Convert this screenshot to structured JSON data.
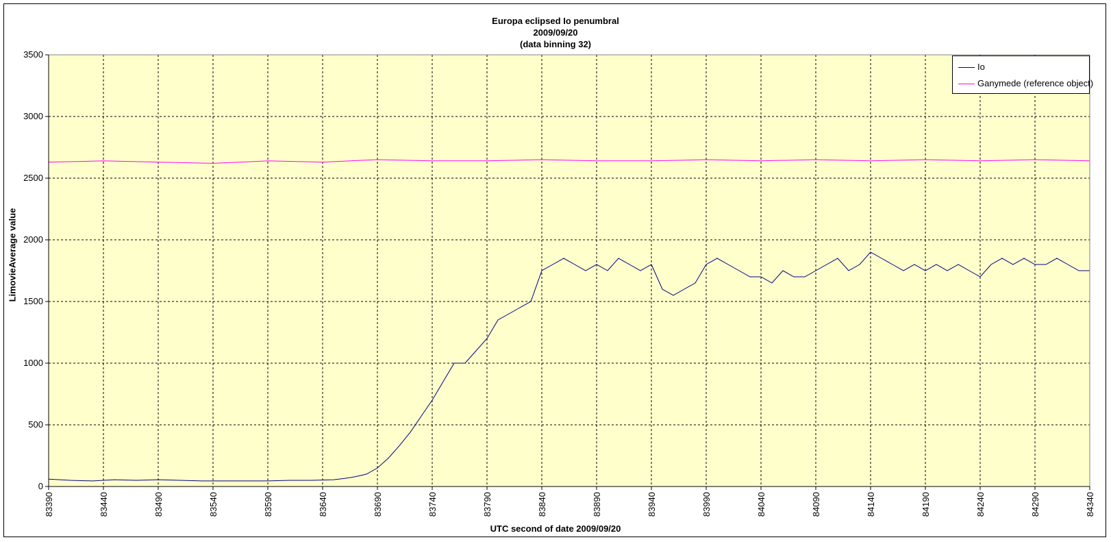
{
  "chart_data": {
    "type": "line",
    "title": "Europa eclipsed Io penumbral",
    "subtitle_lines": [
      "2009/09/20",
      "(data binning 32)"
    ],
    "xlabel": "UTC second  of date 2009/09/20",
    "ylabel": "LimovieAverage value",
    "xlim": [
      83390,
      84340
    ],
    "ylim": [
      0,
      3500
    ],
    "xticks": [
      83390,
      83440,
      83490,
      83540,
      83590,
      83640,
      83690,
      83740,
      83790,
      83840,
      83890,
      83940,
      83990,
      84040,
      84090,
      84140,
      84190,
      84240,
      84290,
      84340
    ],
    "yticks": [
      0,
      500,
      1000,
      1500,
      2000,
      2500,
      3000,
      3500
    ],
    "grid": true,
    "legend_position": "top-right",
    "plot_background": "#ffffcc",
    "series": [
      {
        "name": "Io",
        "color": "#000080",
        "x": [
          83390,
          83410,
          83430,
          83450,
          83470,
          83490,
          83510,
          83530,
          83550,
          83570,
          83590,
          83610,
          83630,
          83650,
          83660,
          83670,
          83680,
          83690,
          83700,
          83710,
          83720,
          83730,
          83740,
          83750,
          83760,
          83770,
          83780,
          83790,
          83800,
          83810,
          83820,
          83830,
          83840,
          83850,
          83860,
          83870,
          83880,
          83890,
          83900,
          83910,
          83920,
          83930,
          83940,
          83950,
          83960,
          83970,
          83980,
          83990,
          84000,
          84010,
          84020,
          84030,
          84040,
          84050,
          84060,
          84070,
          84080,
          84090,
          84100,
          84110,
          84120,
          84130,
          84140,
          84150,
          84160,
          84170,
          84180,
          84190,
          84200,
          84210,
          84220,
          84230,
          84240,
          84250,
          84260,
          84270,
          84280,
          84290,
          84300,
          84310,
          84320,
          84330,
          84340
        ],
        "values": [
          60,
          50,
          45,
          55,
          50,
          55,
          50,
          45,
          45,
          45,
          45,
          50,
          50,
          55,
          65,
          80,
          100,
          150,
          230,
          330,
          440,
          570,
          700,
          850,
          1000,
          1000,
          1100,
          1200,
          1350,
          1400,
          1450,
          1500,
          1750,
          1800,
          1850,
          1800,
          1750,
          1800,
          1750,
          1850,
          1800,
          1750,
          1800,
          1600,
          1550,
          1600,
          1650,
          1800,
          1850,
          1800,
          1750,
          1700,
          1700,
          1650,
          1750,
          1700,
          1700,
          1750,
          1800,
          1850,
          1750,
          1800,
          1900,
          1850,
          1800,
          1750,
          1800,
          1750,
          1800,
          1750,
          1800,
          1750,
          1700,
          1800,
          1850,
          1800,
          1850,
          1800,
          1800,
          1850,
          1800,
          1750,
          1750
        ]
      },
      {
        "name": "Ganymede (reference object)",
        "color": "#ff00ff",
        "x": [
          83390,
          83440,
          83490,
          83540,
          83590,
          83640,
          83690,
          83740,
          83790,
          83840,
          83890,
          83940,
          83990,
          84040,
          84090,
          84140,
          84190,
          84240,
          84290,
          84340
        ],
        "values": [
          2630,
          2640,
          2630,
          2620,
          2640,
          2630,
          2650,
          2640,
          2640,
          2650,
          2640,
          2640,
          2650,
          2640,
          2650,
          2640,
          2650,
          2640,
          2650,
          2640
        ]
      }
    ]
  }
}
